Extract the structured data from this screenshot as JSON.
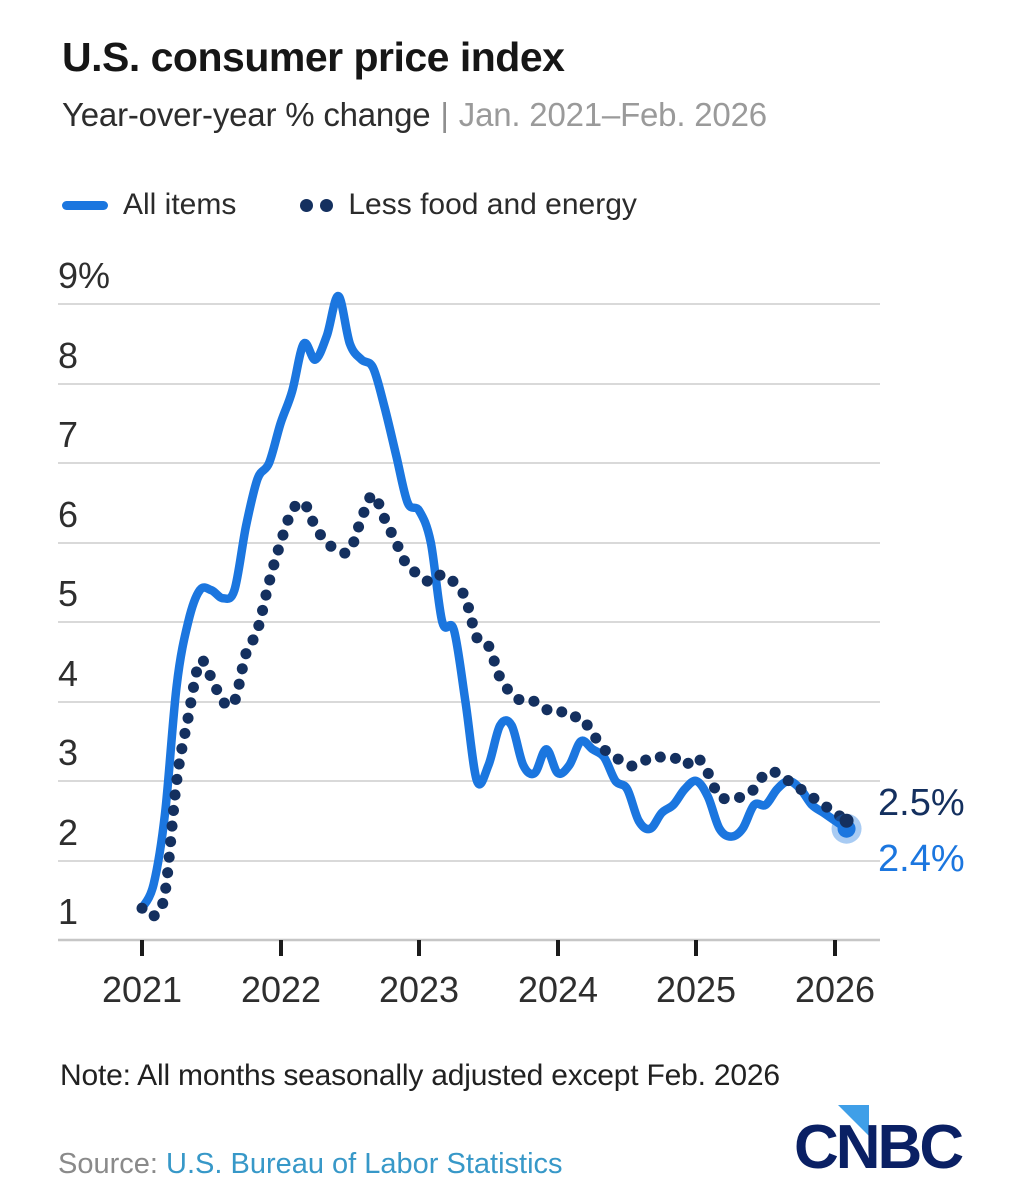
{
  "header": {
    "title": "U.S. consumer price index",
    "subtitle_main": "Year-over-year % change",
    "subtitle_separator": "|",
    "subtitle_range": "Jan. 2021–Feb. 2026"
  },
  "legend": [
    {
      "label": "All items",
      "swatch": "solid-dash",
      "color": "#1B76DF"
    },
    {
      "label": "Less food and energy",
      "swatch": "two-dots",
      "color": "#14305F"
    }
  ],
  "chart_data": {
    "type": "line",
    "title": "U.S. consumer price index",
    "ylabel": "Year-over-year % change",
    "x_frequency": "monthly",
    "x_start": "Jan 2021",
    "x_end": "Feb 2026",
    "ylim": [
      1,
      9
    ],
    "grid": true,
    "yticks": [
      "9%",
      "8",
      "7",
      "6",
      "5",
      "4",
      "3",
      "2",
      "1"
    ],
    "xticks": [
      "2021",
      "2022",
      "2023",
      "2024",
      "2025",
      "2026"
    ],
    "series": [
      {
        "name": "All items",
        "style": "solid",
        "color": "#1B76DF",
        "values": [
          1.4,
          1.7,
          2.6,
          4.2,
          5.0,
          5.4,
          5.4,
          5.3,
          5.4,
          6.2,
          6.8,
          7.0,
          7.5,
          7.9,
          8.5,
          8.3,
          8.6,
          9.1,
          8.5,
          8.3,
          8.2,
          7.7,
          7.1,
          6.5,
          6.4,
          6.0,
          5.0,
          4.9,
          4.0,
          3.0,
          3.2,
          3.7,
          3.7,
          3.2,
          3.1,
          3.4,
          3.1,
          3.2,
          3.5,
          3.4,
          3.3,
          3.0,
          2.9,
          2.5,
          2.4,
          2.6,
          2.7,
          2.9,
          3.0,
          2.8,
          2.4,
          2.3,
          2.4,
          2.7,
          2.7,
          2.9,
          3.0,
          2.9,
          2.7,
          2.6,
          2.5,
          2.4
        ]
      },
      {
        "name": "Less food and energy",
        "style": "dotted",
        "color": "#14305F",
        "values": [
          1.4,
          1.3,
          1.6,
          3.0,
          3.8,
          4.5,
          4.3,
          4.0,
          4.0,
          4.6,
          4.9,
          5.5,
          6.0,
          6.4,
          6.5,
          6.2,
          6.0,
          5.9,
          5.9,
          6.3,
          6.6,
          6.3,
          6.0,
          5.7,
          5.6,
          5.5,
          5.6,
          5.5,
          5.3,
          4.8,
          4.7,
          4.3,
          4.1,
          4.0,
          4.0,
          3.9,
          3.9,
          3.8,
          3.8,
          3.6,
          3.4,
          3.3,
          3.2,
          3.2,
          3.3,
          3.3,
          3.3,
          3.2,
          3.3,
          3.1,
          2.8,
          2.8,
          2.8,
          2.9,
          3.1,
          3.1,
          3.0,
          2.9,
          2.8,
          2.7,
          2.6,
          2.5
        ]
      }
    ],
    "annotations": [
      {
        "series": "Less food and energy",
        "text": "2.5%",
        "color": "#14305F"
      },
      {
        "series": "All items",
        "text": "2.4%",
        "color": "#1B76DF"
      }
    ],
    "legend_position": "top-left"
  },
  "footer": {
    "note": "Note: All months seasonally adjusted except Feb. 2026",
    "source_label": "Source:",
    "source_link": "U.S. Bureau of Labor Statistics",
    "logo_text": "CNBC"
  },
  "colors": {
    "all_items_line": "#1B76DF",
    "core_line": "#14305F",
    "end_halo": "rgba(27,118,223,0.38)",
    "gridline": "#d9d9d9",
    "source_link": "#3798C8",
    "logo_navy": "#0A2064",
    "logo_triangle": "#3F9FE8"
  }
}
